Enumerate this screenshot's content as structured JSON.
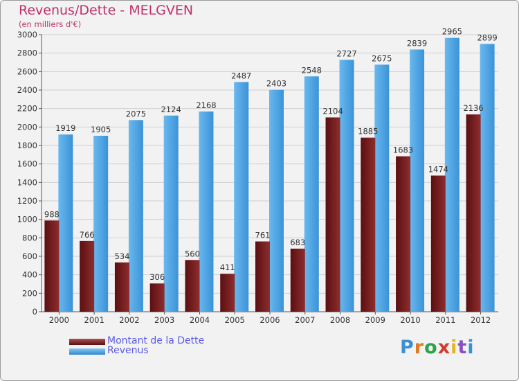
{
  "chart_data": {
    "type": "bar",
    "title": "Revenus/Dette - MELGVEN",
    "subtitle": "(en milliers d'€)",
    "categories": [
      "2000",
      "2001",
      "2002",
      "2003",
      "2004",
      "2005",
      "2006",
      "2007",
      "2008",
      "2009",
      "2010",
      "2011",
      "2012"
    ],
    "series": [
      {
        "name": "Montant de la Dette",
        "color": "#7a1c1c",
        "values": [
          988,
          766,
          534,
          306,
          560,
          411,
          761,
          683,
          2104,
          1885,
          1683,
          1474,
          2136
        ],
        "labels": [
          "988",
          "766",
          "534",
          "306",
          "560",
          "411",
          "761",
          "683",
          "2104",
          "1885",
          "1683",
          "1474",
          "2136"
        ]
      },
      {
        "name": "Revenus",
        "color": "#4a9ee0",
        "values": [
          1919,
          1905,
          2075,
          2124,
          2168,
          2487,
          2403,
          2548,
          2727,
          2675,
          2839,
          2965,
          2899
        ],
        "labels": [
          "1919",
          "1905",
          "2075",
          "2124",
          "2168",
          "2487",
          "2403",
          "2548",
          "2727",
          "2675",
          "2839",
          "2965",
          "2899"
        ]
      }
    ],
    "ylim": [
      0,
      3000
    ],
    "yticks": [
      0,
      200,
      400,
      600,
      800,
      1000,
      1200,
      1400,
      1600,
      1800,
      2000,
      2200,
      2400,
      2600,
      2800,
      3000
    ],
    "grid": true,
    "legend": "bottom-left"
  },
  "legend": {
    "debt_label": "Montant de la Dette",
    "revenue_label": "Revenus"
  },
  "logo": {
    "text": "Proxiti"
  }
}
